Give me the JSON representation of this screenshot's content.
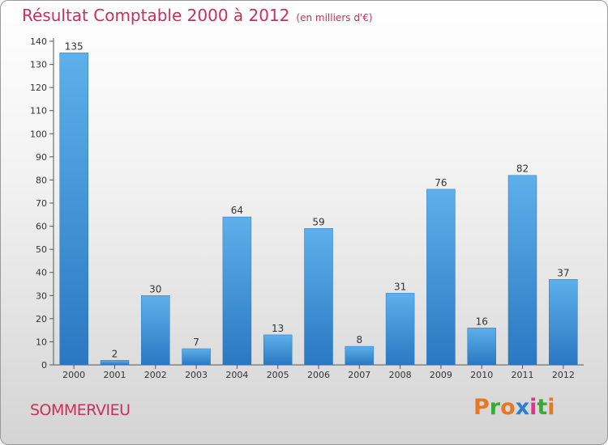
{
  "chart_data": {
    "type": "bar",
    "title": "Résultat Comptable 2000 à 2012",
    "subtitle": "(en milliers d'€)",
    "categories": [
      "2000",
      "2001",
      "2002",
      "2003",
      "2004",
      "2005",
      "2006",
      "2007",
      "2008",
      "2009",
      "2010",
      "2011",
      "2012"
    ],
    "values": [
      135,
      2,
      30,
      7,
      64,
      13,
      59,
      8,
      31,
      76,
      16,
      82,
      37
    ],
    "ylim": [
      0,
      140
    ],
    "yticks": [
      0,
      10,
      20,
      30,
      40,
      50,
      60,
      70,
      80,
      90,
      100,
      110,
      120,
      130,
      140
    ],
    "xlabel": "",
    "ylabel": "",
    "grid": false,
    "bar_color": "#3d93d8"
  },
  "footer": {
    "commune": "SOMMERVIEU",
    "logo_letters": [
      "P",
      "r",
      "o",
      "x",
      "i",
      "t",
      "i"
    ],
    "logo_colors": [
      "#e87722",
      "#3aaa35",
      "#e87722",
      "#2a7fd4",
      "#e0338f",
      "#3aaa35",
      "#e87722"
    ]
  }
}
